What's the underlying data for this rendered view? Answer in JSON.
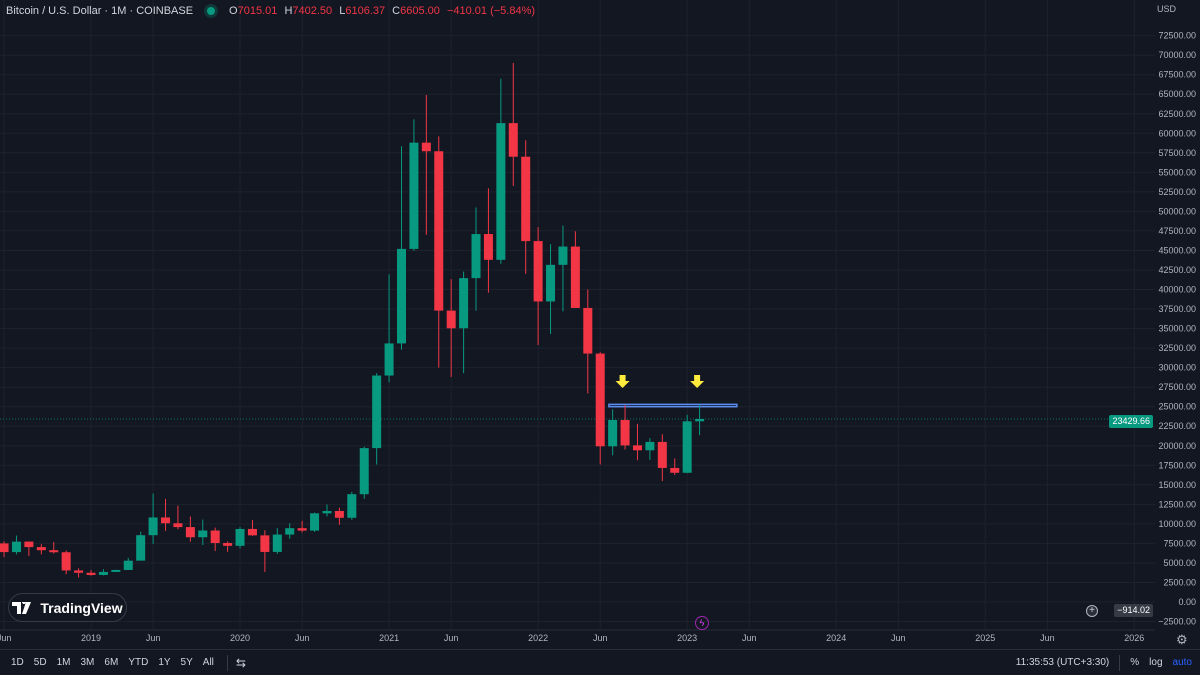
{
  "header": {
    "title": "Bitcoin / U.S. Dollar · 1M · COINBASE",
    "o_label": "O",
    "o": "7015.01",
    "h_label": "H",
    "h": "7402.50",
    "l_label": "L",
    "l": "6106.37",
    "c_label": "C",
    "c": "6605.00",
    "change": "−410.01 (−5.84%)"
  },
  "currency": "USD",
  "price_badge": "23429.66",
  "cursor_badge": "−914.02",
  "logo": "TradingView",
  "toolbar": {
    "timeframes": [
      "1D",
      "5D",
      "1M",
      "3M",
      "6M",
      "YTD",
      "1Y",
      "5Y",
      "All"
    ],
    "clock": "11:35:53 (UTC+3:30)",
    "percent": "%",
    "log": "log",
    "auto": "auto"
  },
  "colors": {
    "up": "#089981",
    "down": "#f23645",
    "bg": "#131722",
    "grid": "#1e222d",
    "zone": "#2962ff",
    "arrow": "#ffeb3b"
  },
  "chart_data": {
    "type": "candlestick",
    "title": "Bitcoin / U.S. Dollar · 1M · COINBASE",
    "start_month": "2018-06",
    "ylim": [
      -2500,
      75000
    ],
    "y_ticks": [
      "72500.00",
      "70000.00",
      "67500.00",
      "65000.00",
      "62500.00",
      "60000.00",
      "57500.00",
      "55000.00",
      "52500.00",
      "50000.00",
      "47500.00",
      "45000.00",
      "42500.00",
      "40000.00",
      "37500.00",
      "35000.00",
      "32500.00",
      "30000.00",
      "27500.00",
      "25000.00",
      "22500.00",
      "20000.00",
      "17500.00",
      "15000.00",
      "12500.00",
      "10000.00",
      "7500.00",
      "5000.00",
      "2500.00",
      "0.00",
      "−2500.00"
    ],
    "x_ticks": [
      {
        "label": "Jun",
        "m": -7
      },
      {
        "label": "2019",
        "m": 0
      },
      {
        "label": "Jun",
        "m": 5
      },
      {
        "label": "2020",
        "m": 12
      },
      {
        "label": "Jun",
        "m": 17
      },
      {
        "label": "2021",
        "m": 24
      },
      {
        "label": "Jun",
        "m": 29
      },
      {
        "label": "2022",
        "m": 36
      },
      {
        "label": "Jun",
        "m": 41
      },
      {
        "label": "2023",
        "m": 48
      },
      {
        "label": "Jun",
        "m": 53
      },
      {
        "label": "2024",
        "m": 60
      },
      {
        "label": "Jun",
        "m": 65
      },
      {
        "label": "2025",
        "m": 72
      },
      {
        "label": "Jun",
        "m": 77
      },
      {
        "label": "2026",
        "m": 84
      }
    ],
    "last_price": 23429.66,
    "zone": {
      "from_m": 41.7,
      "to_m": 52,
      "low": 25000,
      "high": 25300
    },
    "arrows_m": [
      42.8,
      48.8
    ],
    "candles": [
      [
        7500,
        7770,
        5750,
        6390
      ],
      [
        6390,
        8500,
        6100,
        7730
      ],
      [
        7730,
        7760,
        5880,
        7030
      ],
      [
        7030,
        7410,
        6100,
        6630
      ],
      [
        6630,
        7680,
        6200,
        6370
      ],
      [
        6370,
        6600,
        3560,
        4040
      ],
      [
        4040,
        4320,
        3130,
        3740
      ],
      [
        3740,
        4100,
        3360,
        3460
      ],
      [
        3460,
        4200,
        3400,
        3850
      ],
      [
        3850,
        4140,
        3850,
        4100
      ],
      [
        4100,
        5640,
        4090,
        5290
      ],
      [
        5290,
        9000,
        5350,
        8550
      ],
      [
        8550,
        13880,
        7440,
        10820
      ],
      [
        10820,
        13200,
        9100,
        10080
      ],
      [
        10080,
        12330,
        9320,
        9590
      ],
      [
        9590,
        10950,
        7710,
        8290
      ],
      [
        8290,
        10540,
        7300,
        9150
      ],
      [
        9150,
        9520,
        6520,
        7550
      ],
      [
        7550,
        7750,
        6430,
        7190
      ],
      [
        7190,
        9580,
        6860,
        9350
      ],
      [
        9350,
        10500,
        8470,
        8530
      ],
      [
        8530,
        9190,
        3850,
        6410
      ],
      [
        6410,
        9470,
        6150,
        8630
      ],
      [
        8630,
        10080,
        8100,
        9450
      ],
      [
        9450,
        10380,
        8900,
        9140
      ],
      [
        9140,
        11450,
        8980,
        11350
      ],
      [
        11350,
        12480,
        10950,
        11650
      ],
      [
        11650,
        12070,
        9880,
        10780
      ],
      [
        10780,
        14100,
        10520,
        13800
      ],
      [
        13800,
        19900,
        13200,
        19700
      ],
      [
        19700,
        29300,
        17600,
        28990
      ],
      [
        28990,
        41950,
        28130,
        33100
      ],
      [
        33100,
        58350,
        32300,
        45200
      ],
      [
        45200,
        61780,
        44950,
        58800
      ],
      [
        58800,
        64900,
        47000,
        57700
      ],
      [
        57700,
        59600,
        30000,
        37300
      ],
      [
        37300,
        41330,
        28800,
        35040
      ],
      [
        35040,
        42300,
        29300,
        41460
      ],
      [
        41460,
        50500,
        37300,
        47100
      ],
      [
        47100,
        52950,
        39600,
        43800
      ],
      [
        43800,
        67000,
        43300,
        61300
      ],
      [
        61300,
        69000,
        53250,
        57000
      ],
      [
        57000,
        59100,
        42000,
        46200
      ],
      [
        46200,
        47990,
        32900,
        38470
      ],
      [
        38470,
        45800,
        34300,
        43160
      ],
      [
        43160,
        48200,
        37200,
        45500
      ],
      [
        45500,
        47450,
        37700,
        37640
      ],
      [
        37640,
        40000,
        26700,
        31800
      ],
      [
        31800,
        31980,
        17600,
        19930
      ],
      [
        19930,
        24670,
        18780,
        23300
      ],
      [
        23300,
        25200,
        19520,
        20050
      ],
      [
        20050,
        22800,
        18150,
        19420
      ],
      [
        19420,
        20990,
        18200,
        20490
      ],
      [
        20490,
        21480,
        15480,
        17160
      ],
      [
        17160,
        18390,
        16260,
        16540
      ],
      [
        16540,
        23960,
        16500,
        23130
      ],
      [
        23130,
        25250,
        21350,
        23429.66
      ]
    ]
  }
}
